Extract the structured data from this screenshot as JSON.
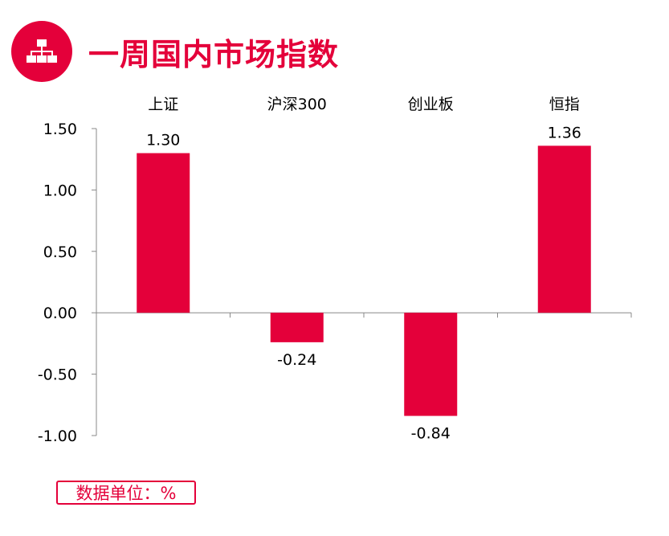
{
  "header": {
    "icon": "sitemap-icon",
    "title": "一周国内市场指数"
  },
  "colors": {
    "accent": "#e4003a",
    "bar": "#e4003a",
    "axis": "#888888"
  },
  "chart_data": {
    "type": "bar",
    "categories": [
      "上证",
      "沪深300",
      "创业板",
      "恒指"
    ],
    "values": [
      1.3,
      -0.24,
      -0.84,
      1.36
    ],
    "value_labels": [
      "1.30",
      "-0.24",
      "-0.84",
      "1.36"
    ],
    "yticks": [
      "1.50",
      "1.00",
      "0.50",
      "0.00",
      "-0.50",
      "-1.00"
    ],
    "ylim": [
      -1.0,
      1.5
    ],
    "category_labels_position": "top",
    "grid": false,
    "legend": "none"
  },
  "footer": {
    "unit_label": "数据单位：%"
  }
}
